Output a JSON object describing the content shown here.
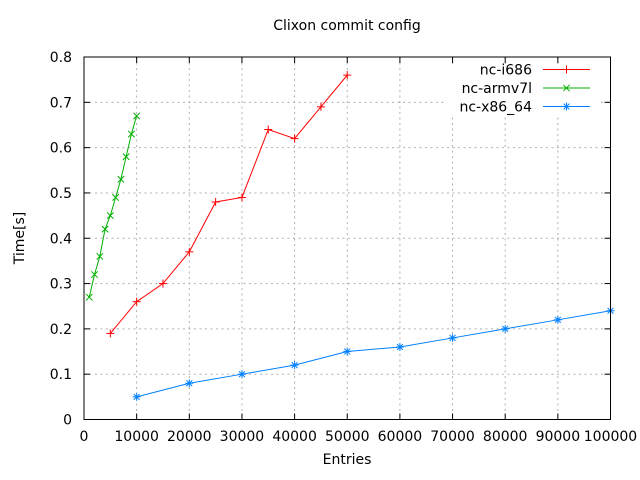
{
  "chart_data": {
    "type": "line",
    "title": "Clixon commit config",
    "xlabel": "Entries",
    "ylabel": "Time[s]",
    "xlim": [
      0,
      100000
    ],
    "ylim": [
      0,
      0.8
    ],
    "x_ticks": [
      0,
      10000,
      20000,
      30000,
      40000,
      50000,
      60000,
      70000,
      80000,
      90000,
      100000
    ],
    "x_tick_labels": [
      "0",
      "10000",
      "20000",
      "30000",
      "40000",
      "50000",
      "60000",
      "70000",
      "80000",
      "90000",
      "100000"
    ],
    "y_ticks": [
      0,
      0.1,
      0.2,
      0.3,
      0.4,
      0.5,
      0.6,
      0.7,
      0.8
    ],
    "y_tick_labels": [
      "0",
      "0.1",
      "0.2",
      "0.3",
      "0.4",
      "0.5",
      "0.6",
      "0.7",
      "0.8"
    ],
    "grid": true,
    "legend_position": "top-right",
    "series": [
      {
        "name": "nc-i686",
        "color": "#ff0000",
        "marker": "plus",
        "x": [
          5000,
          10000,
          15000,
          20000,
          25000,
          30000,
          35000,
          40000,
          45000,
          50000
        ],
        "y": [
          0.19,
          0.26,
          0.3,
          0.37,
          0.48,
          0.49,
          0.64,
          0.62,
          0.69,
          0.76
        ]
      },
      {
        "name": "nc-armv7l",
        "color": "#00b000",
        "marker": "cross",
        "x": [
          1000,
          2000,
          3000,
          4000,
          5000,
          6000,
          7000,
          8000,
          9000,
          10000
        ],
        "y": [
          0.27,
          0.32,
          0.36,
          0.42,
          0.45,
          0.49,
          0.53,
          0.58,
          0.63,
          0.67
        ]
      },
      {
        "name": "nc-x86_64",
        "color": "#0080ff",
        "marker": "asterisk",
        "x": [
          10000,
          20000,
          30000,
          40000,
          50000,
          60000,
          70000,
          80000,
          90000,
          100000
        ],
        "y": [
          0.05,
          0.08,
          0.1,
          0.12,
          0.15,
          0.16,
          0.18,
          0.2,
          0.22,
          0.24
        ]
      }
    ]
  }
}
